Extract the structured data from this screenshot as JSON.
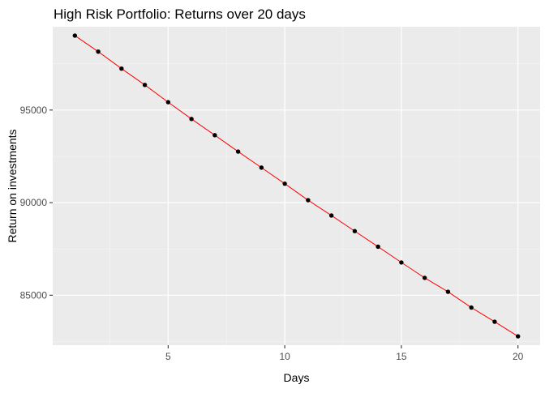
{
  "chart_data": {
    "type": "line",
    "title": "High Risk Portfolio: Returns over 20 days",
    "xlabel": "Days",
    "ylabel": "Return on investments",
    "xlim": [
      0.05,
      20.95
    ],
    "ylim": [
      82300,
      99500
    ],
    "x_ticks": [
      5,
      10,
      15,
      20
    ],
    "x_tick_labels": [
      "5",
      "10",
      "15",
      "20"
    ],
    "x_minor_ticks": [
      2.5,
      7.5,
      12.5,
      17.5
    ],
    "y_ticks": [
      85000,
      90000,
      95000
    ],
    "y_tick_labels": [
      "85000",
      "90000",
      "95000"
    ],
    "y_minor_ticks": [
      82500,
      87500,
      92500,
      97500
    ],
    "grid": true,
    "series": [
      {
        "x": [
          1,
          2,
          3,
          4,
          5,
          6,
          7,
          8,
          9,
          10,
          11,
          12,
          13,
          14,
          15,
          16,
          17,
          18,
          19,
          20
        ],
        "values": [
          99020,
          98157,
          97237,
          96356,
          95424,
          94518,
          93643,
          92757,
          91890,
          91024,
          90132,
          89305,
          88461,
          87619,
          86769,
          85937,
          85185,
          84333,
          83567,
          82778
        ],
        "line_color": "#ff0000",
        "point_color": "#000000"
      }
    ],
    "colors": {
      "panel_background": "#ebebeb",
      "grid_major": "#ffffff",
      "grid_minor": "#f5f5f5",
      "axis_text": "#4d4d4d",
      "title_text": "#000000"
    }
  }
}
